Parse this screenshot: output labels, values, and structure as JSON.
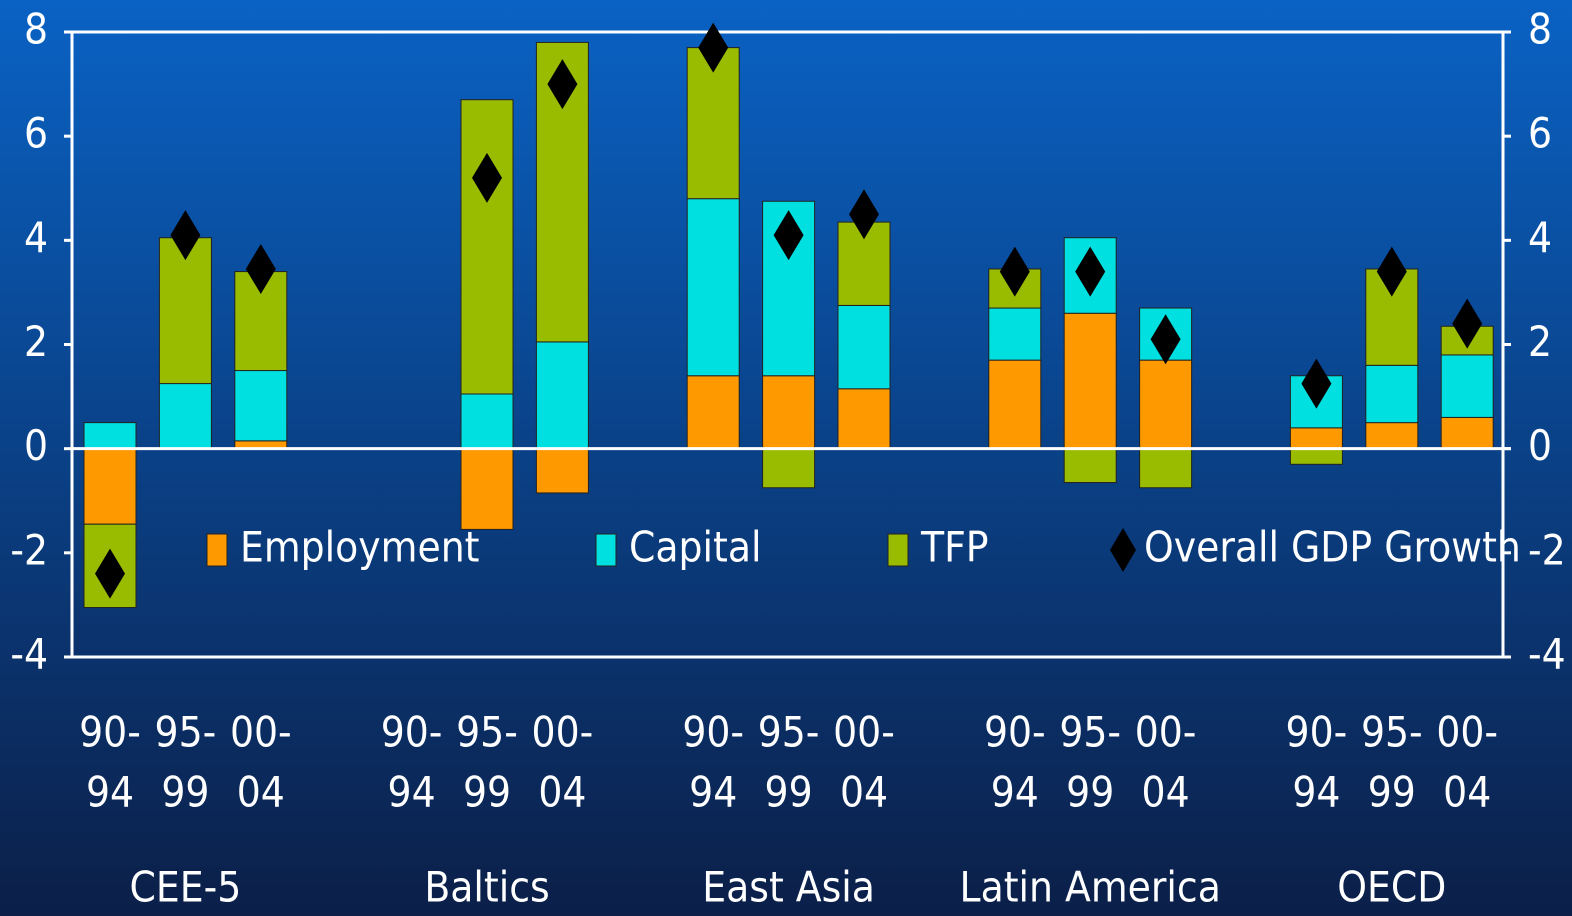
{
  "chart_data": {
    "type": "stacked_bar",
    "categories": [
      [
        "90-",
        "94"
      ],
      [
        "95-",
        "99"
      ],
      [
        "00-",
        "04"
      ],
      [
        "90-",
        "94"
      ],
      [
        "95-",
        "99"
      ],
      [
        "00-",
        "04"
      ],
      [
        "90-",
        "94"
      ],
      [
        "95-",
        "99"
      ],
      [
        "00-",
        "04"
      ],
      [
        "90-",
        "94"
      ],
      [
        "95-",
        "99"
      ],
      [
        "00-",
        "04"
      ],
      [
        "90-",
        "94"
      ],
      [
        "95-",
        "99"
      ],
      [
        "00-",
        "04"
      ]
    ],
    "group_labels": [
      "CEE-5",
      "Baltics",
      "East Asia",
      "Latin America",
      "OECD"
    ],
    "series": [
      {
        "name": "Employment",
        "color": "#ff9900",
        "values": [
          -1.45,
          0,
          0.15,
          null,
          -1.55,
          -0.85,
          1.4,
          1.4,
          1.15,
          1.7,
          2.6,
          1.7,
          0.4,
          0.5,
          0.6
        ]
      },
      {
        "name": "Capital",
        "color": "#00e0e0",
        "values": [
          0.5,
          1.25,
          1.35,
          null,
          1.05,
          2.05,
          3.4,
          3.35,
          1.6,
          1.0,
          1.45,
          1.0,
          1.0,
          1.1,
          1.2
        ]
      },
      {
        "name": "TFP",
        "color": "#99bb00",
        "values": [
          -1.6,
          2.8,
          1.9,
          null,
          5.65,
          5.75,
          2.9,
          -0.75,
          1.6,
          0.75,
          -0.65,
          -0.75,
          -0.3,
          1.85,
          0.55
        ]
      },
      {
        "name": "Overall GDP Growth",
        "color": "#000000",
        "marker": "diamond",
        "values": [
          -2.4,
          4.1,
          3.45,
          null,
          5.2,
          7.0,
          7.7,
          4.1,
          4.5,
          3.4,
          3.4,
          2.1,
          1.25,
          3.4,
          2.4
        ]
      }
    ],
    "ylim": [
      -4,
      8
    ],
    "yticks": [
      -4,
      -2,
      0,
      2,
      4,
      6,
      8
    ],
    "y2lim": [
      -4,
      8
    ],
    "y2ticks": [
      -4,
      -2,
      0,
      2,
      4,
      6,
      8
    ]
  }
}
